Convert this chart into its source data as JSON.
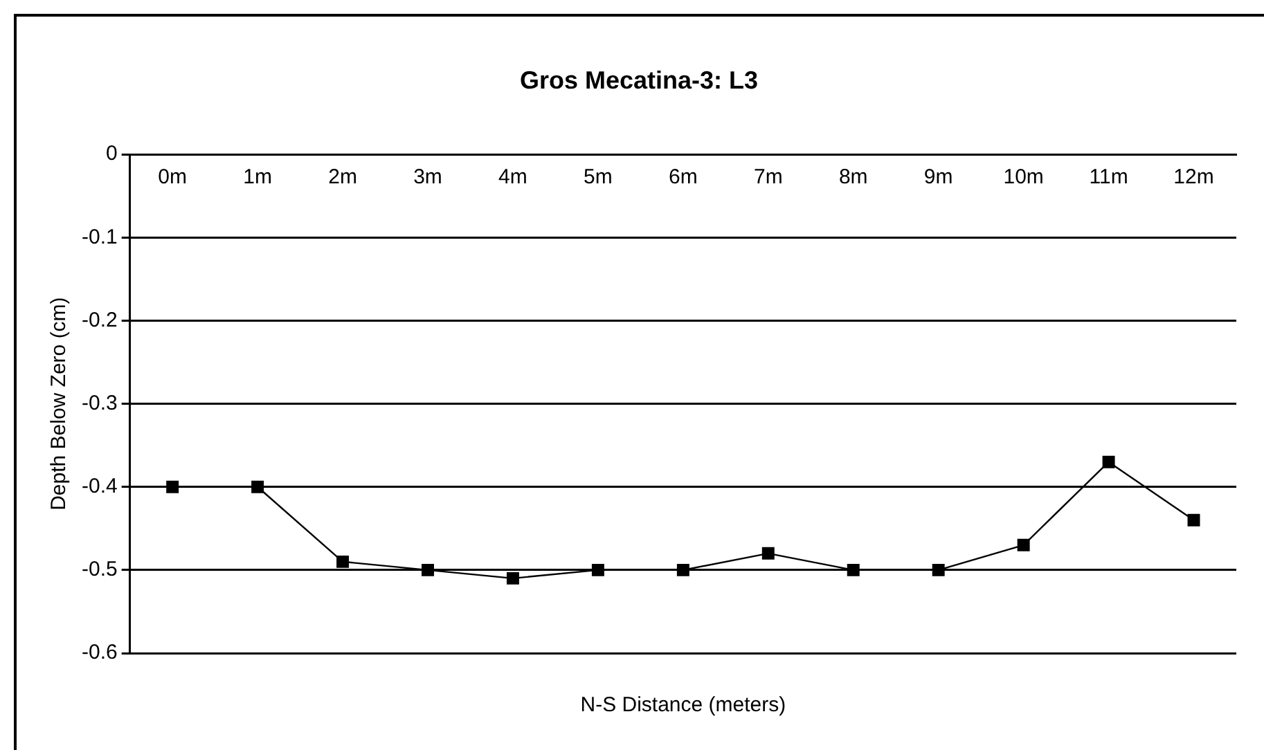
{
  "chart_data": {
    "type": "line",
    "title": "Gros Mecatina-3: L3",
    "xlabel": "N-S Distance (meters)",
    "ylabel": "Depth Below Zero (cm)",
    "categories": [
      "0m",
      "1m",
      "2m",
      "3m",
      "4m",
      "5m",
      "6m",
      "7m",
      "8m",
      "9m",
      "10m",
      "11m",
      "12m"
    ],
    "series": [
      {
        "color": "#000000",
        "values": [
          -0.4,
          -0.4,
          -0.49,
          -0.5,
          -0.51,
          -0.5,
          -0.5,
          -0.48,
          -0.5,
          -0.5,
          -0.47,
          -0.37,
          -0.44
        ]
      }
    ],
    "ylim": [
      -0.6,
      0
    ],
    "yticks": [
      -0.6,
      -0.5,
      -0.4,
      -0.3,
      -0.2,
      -0.1,
      0
    ],
    "grid": "y",
    "legend": false,
    "marker": "square",
    "line_style": "solid"
  }
}
